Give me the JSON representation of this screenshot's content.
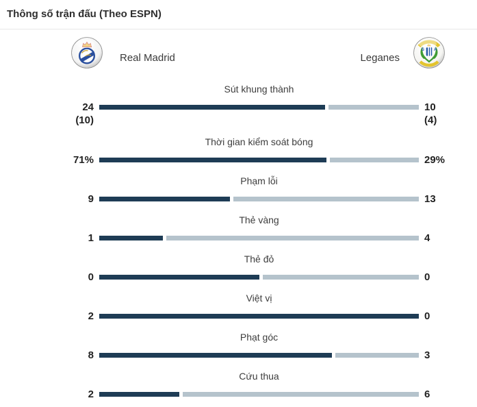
{
  "header": {
    "title": "Thông số trận đấu (Theo ESPN)"
  },
  "teams": {
    "home": {
      "name": "Real Madrid"
    },
    "away": {
      "name": "Leganes"
    }
  },
  "colors": {
    "home_bar": "#1e3c55",
    "away_bar": "#b5c3cc",
    "divider": "#e7e7e7",
    "label_text": "#3d3d3d",
    "value_text": "#222222"
  },
  "chart_data": {
    "type": "bar",
    "title": "Thông số trận đấu (Theo ESPN)",
    "orientation": "horizontal-split",
    "legend_position": "top",
    "series": [
      {
        "name": "Real Madrid",
        "color": "#1e3c55"
      },
      {
        "name": "Leganes",
        "color": "#b5c3cc"
      }
    ],
    "stats": [
      {
        "label": "Sút khung thành",
        "home_value": 24,
        "away_value": 10,
        "home_display": "24",
        "away_display": "10",
        "home_sub": "(10)",
        "away_sub": "(4)"
      },
      {
        "label": "Thời gian kiểm soát bóng",
        "home_value": 71,
        "away_value": 29,
        "home_display": "71%",
        "away_display": "29%",
        "home_sub": "",
        "away_sub": ""
      },
      {
        "label": "Phạm lỗi",
        "home_value": 9,
        "away_value": 13,
        "home_display": "9",
        "away_display": "13",
        "home_sub": "",
        "away_sub": ""
      },
      {
        "label": "Thẻ vàng",
        "home_value": 1,
        "away_value": 4,
        "home_display": "1",
        "away_display": "4",
        "home_sub": "",
        "away_sub": ""
      },
      {
        "label": "Thẻ đỏ",
        "home_value": 0,
        "away_value": 0,
        "home_display": "0",
        "away_display": "0",
        "home_sub": "",
        "away_sub": ""
      },
      {
        "label": "Việt vị",
        "home_value": 2,
        "away_value": 0,
        "home_display": "2",
        "away_display": "0",
        "home_sub": "",
        "away_sub": ""
      },
      {
        "label": "Phạt góc",
        "home_value": 8,
        "away_value": 3,
        "home_display": "8",
        "away_display": "3",
        "home_sub": "",
        "away_sub": ""
      },
      {
        "label": "Cứu thua",
        "home_value": 2,
        "away_value": 6,
        "home_display": "2",
        "away_display": "6",
        "home_sub": "",
        "away_sub": ""
      }
    ]
  }
}
